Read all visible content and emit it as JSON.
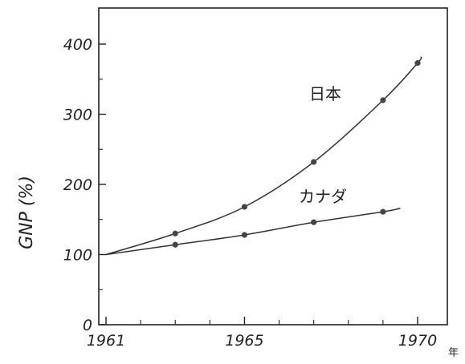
{
  "chart_data": {
    "type": "line",
    "title": "",
    "ylabel": "GNP (%)",
    "xlabel": "年",
    "xlim": [
      1961,
      1970
    ],
    "ylim": [
      0,
      450
    ],
    "x_ticks": [
      1961,
      1965,
      1970
    ],
    "x_minor_ticks": [
      1962,
      1963,
      1964,
      1966,
      1967,
      1968,
      1969
    ],
    "y_ticks": [
      0,
      100,
      200,
      300,
      400
    ],
    "grid": false,
    "legend": "labels next to curves",
    "series": [
      {
        "name": "日本",
        "points": [
          [
            1961,
            100
          ],
          [
            1963,
            130
          ],
          [
            1965,
            168
          ],
          [
            1967,
            232
          ],
          [
            1969,
            320
          ],
          [
            1970,
            373
          ]
        ],
        "curve_end": [
          1970.1,
          382
        ]
      },
      {
        "name": "カナダ",
        "points": [
          [
            1961,
            100
          ],
          [
            1963,
            114
          ],
          [
            1965,
            128
          ],
          [
            1967,
            146
          ],
          [
            1969,
            161
          ]
        ],
        "curve_end": [
          1969.5,
          166
        ]
      }
    ],
    "colors": {
      "line": "#333333",
      "marker": "#444444",
      "axis": "#222222"
    }
  }
}
